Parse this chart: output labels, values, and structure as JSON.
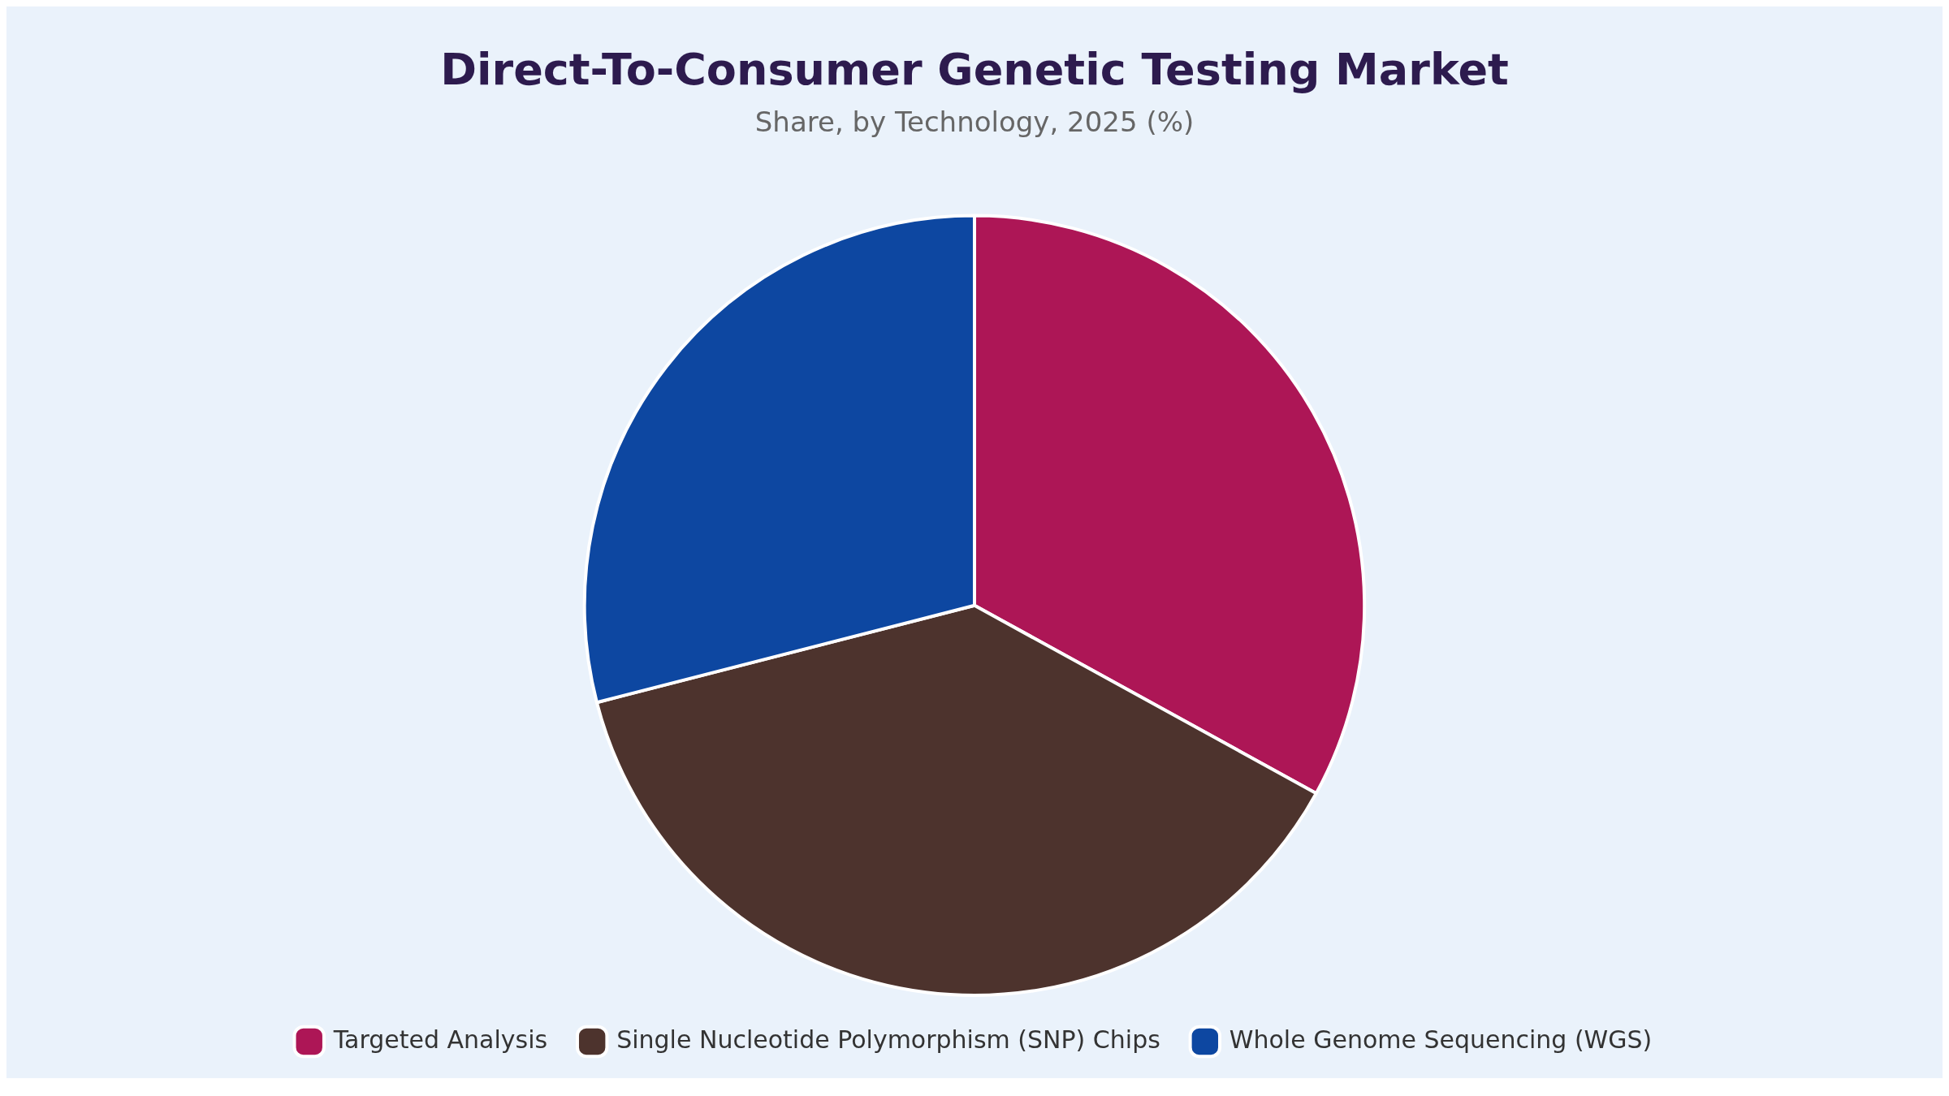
{
  "chart_data": {
    "type": "pie",
    "title": "Direct-To-Consumer Genetic Testing Market",
    "subtitle": "Share, by Technology, 2025 (%)",
    "categories": [
      "Targeted Analysis",
      "Single Nucleotide Polymorphism (SNP) Chips",
      "Whole Genome Sequencing (WGS)"
    ],
    "values": [
      33,
      38,
      29
    ],
    "colors": [
      "#ad1656",
      "#4d332d",
      "#0d47a1"
    ],
    "legend": "bottom"
  }
}
